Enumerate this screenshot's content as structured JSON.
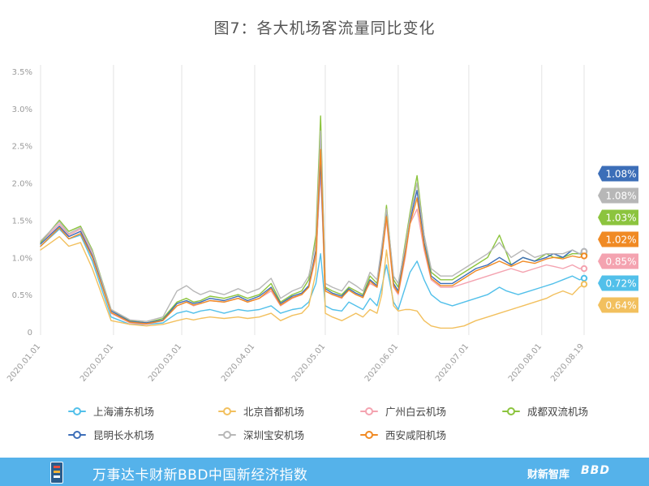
{
  "title": "图7：各大机场客流量同比变化",
  "footer": {
    "index_name": "万事达卡财新BBD中国新经济指数",
    "brand_cn": "财新智库",
    "brand_bbd": "BBD"
  },
  "chart_data": {
    "type": "line",
    "title": "图7：各大机场客流量同比变化",
    "xlabel": "",
    "ylabel": "",
    "y_ticks": [
      "0",
      "0.5%",
      "1.0%",
      "1.5%",
      "2.0%",
      "2.5%",
      "3.0%",
      "3.5%"
    ],
    "ylim": [
      0,
      3.5
    ],
    "x_ticks": [
      "2020.01.01",
      "2020.02.01",
      "2020.03.01",
      "2020.04.01",
      "2020.05.01",
      "2020.06.01",
      "2020.07.01",
      "2020.08.01",
      "2020.08.19"
    ],
    "x_unit": "day_index",
    "x_tick_days": [
      0,
      31,
      60,
      91,
      121,
      152,
      182,
      213,
      231
    ],
    "grid": "vertical",
    "legend_position": "bottom",
    "series": [
      {
        "name": "上海浦东机场",
        "color": "#52c0ea",
        "end_label": "0.72%",
        "x": [
          0,
          8,
          12,
          17,
          22,
          30,
          38,
          45,
          52,
          58,
          62,
          65,
          68,
          72,
          78,
          84,
          88,
          93,
          98,
          102,
          107,
          111,
          114,
          117,
          119,
          121,
          124,
          128,
          131,
          134,
          137,
          140,
          143,
          145,
          147,
          150,
          152,
          155,
          157,
          160,
          163,
          166,
          170,
          175,
          180,
          185,
          190,
          195,
          198,
          203,
          208,
          213,
          218,
          222,
          226,
          229,
          231
        ],
        "values": [
          1.15,
          1.38,
          1.25,
          1.3,
          0.95,
          0.2,
          0.1,
          0.1,
          0.12,
          0.25,
          0.28,
          0.25,
          0.28,
          0.3,
          0.25,
          0.3,
          0.28,
          0.3,
          0.35,
          0.25,
          0.3,
          0.32,
          0.4,
          0.65,
          1.05,
          0.35,
          0.3,
          0.28,
          0.4,
          0.35,
          0.3,
          0.45,
          0.35,
          0.6,
          0.9,
          0.4,
          0.3,
          0.6,
          0.8,
          0.95,
          0.7,
          0.5,
          0.4,
          0.35,
          0.4,
          0.45,
          0.5,
          0.6,
          0.55,
          0.5,
          0.55,
          0.6,
          0.65,
          0.7,
          0.75,
          0.7,
          0.72
        ]
      },
      {
        "name": "北京首都机场",
        "color": "#f2c05e",
        "end_label": "0.64%",
        "x": [
          0,
          8,
          12,
          17,
          22,
          30,
          38,
          45,
          52,
          58,
          62,
          65,
          68,
          72,
          78,
          84,
          88,
          93,
          98,
          102,
          107,
          111,
          114,
          117,
          119,
          121,
          124,
          128,
          131,
          134,
          137,
          140,
          143,
          145,
          147,
          150,
          152,
          155,
          157,
          160,
          163,
          166,
          170,
          175,
          180,
          185,
          190,
          195,
          200,
          205,
          210,
          215,
          218,
          222,
          226,
          229,
          231
        ],
        "values": [
          1.1,
          1.28,
          1.15,
          1.2,
          0.85,
          0.15,
          0.1,
          0.08,
          0.1,
          0.15,
          0.18,
          0.16,
          0.18,
          0.2,
          0.18,
          0.2,
          0.18,
          0.2,
          0.25,
          0.15,
          0.22,
          0.25,
          0.35,
          0.8,
          2.5,
          0.25,
          0.2,
          0.15,
          0.2,
          0.25,
          0.2,
          0.3,
          0.25,
          0.5,
          1.1,
          0.35,
          0.28,
          0.3,
          0.3,
          0.28,
          0.15,
          0.08,
          0.05,
          0.05,
          0.08,
          0.15,
          0.2,
          0.25,
          0.3,
          0.35,
          0.4,
          0.45,
          0.5,
          0.55,
          0.5,
          0.6,
          0.64
        ]
      },
      {
        "name": "广州白云机场",
        "color": "#f4a3b0",
        "end_label": "0.85%",
        "x": [
          0,
          8,
          12,
          17,
          22,
          30,
          38,
          45,
          52,
          58,
          62,
          65,
          68,
          72,
          78,
          84,
          88,
          93,
          98,
          102,
          107,
          111,
          114,
          117,
          119,
          121,
          124,
          128,
          131,
          134,
          137,
          140,
          143,
          145,
          147,
          150,
          152,
          155,
          157,
          160,
          163,
          166,
          170,
          175,
          180,
          185,
          190,
          195,
          200,
          205,
          210,
          215,
          218,
          222,
          226,
          229,
          231
        ],
        "values": [
          1.2,
          1.45,
          1.3,
          1.38,
          1.05,
          0.25,
          0.12,
          0.1,
          0.15,
          0.35,
          0.4,
          0.35,
          0.38,
          0.42,
          0.4,
          0.45,
          0.4,
          0.45,
          0.55,
          0.35,
          0.45,
          0.5,
          0.6,
          1.0,
          2.15,
          0.55,
          0.5,
          0.45,
          0.6,
          0.55,
          0.5,
          0.65,
          0.6,
          1.0,
          1.5,
          0.6,
          0.5,
          1.0,
          1.45,
          1.65,
          1.1,
          0.7,
          0.6,
          0.6,
          0.65,
          0.7,
          0.75,
          0.8,
          0.85,
          0.8,
          0.85,
          0.9,
          0.88,
          0.85,
          0.9,
          0.85,
          0.85
        ]
      },
      {
        "name": "成都双流机场",
        "color": "#8cc43e",
        "end_label": "1.03%",
        "x": [
          0,
          8,
          12,
          17,
          22,
          30,
          38,
          45,
          52,
          58,
          62,
          65,
          68,
          72,
          78,
          84,
          88,
          93,
          98,
          102,
          107,
          111,
          114,
          117,
          119,
          121,
          124,
          128,
          131,
          134,
          137,
          140,
          143,
          145,
          147,
          150,
          152,
          155,
          157,
          160,
          163,
          166,
          170,
          175,
          180,
          185,
          190,
          195,
          200,
          205,
          210,
          215,
          218,
          222,
          226,
          229,
          231
        ],
        "values": [
          1.2,
          1.5,
          1.35,
          1.42,
          1.1,
          0.3,
          0.15,
          0.12,
          0.18,
          0.4,
          0.45,
          0.4,
          0.42,
          0.48,
          0.45,
          0.5,
          0.45,
          0.5,
          0.65,
          0.4,
          0.5,
          0.55,
          0.7,
          1.3,
          2.9,
          0.6,
          0.55,
          0.5,
          0.6,
          0.55,
          0.5,
          0.75,
          0.65,
          1.1,
          1.7,
          0.7,
          0.6,
          1.2,
          1.6,
          2.1,
          1.3,
          0.8,
          0.7,
          0.7,
          0.8,
          0.9,
          1.0,
          1.3,
          0.9,
          1.0,
          0.95,
          1.05,
          1.0,
          1.0,
          1.05,
          1.05,
          1.03
        ]
      },
      {
        "name": "昆明长水机场",
        "color": "#3c6eb8",
        "end_label": "1.08%",
        "x": [
          0,
          8,
          12,
          17,
          22,
          30,
          38,
          45,
          52,
          58,
          62,
          65,
          68,
          72,
          78,
          84,
          88,
          93,
          98,
          102,
          107,
          111,
          114,
          117,
          119,
          121,
          124,
          128,
          131,
          134,
          137,
          140,
          143,
          145,
          147,
          150,
          152,
          155,
          157,
          160,
          163,
          166,
          170,
          175,
          180,
          185,
          190,
          195,
          200,
          205,
          210,
          215,
          218,
          222,
          226,
          229,
          231
        ],
        "values": [
          1.18,
          1.42,
          1.28,
          1.35,
          1.02,
          0.28,
          0.14,
          0.12,
          0.16,
          0.38,
          0.42,
          0.38,
          0.4,
          0.45,
          0.42,
          0.48,
          0.42,
          0.48,
          0.6,
          0.38,
          0.48,
          0.52,
          0.62,
          1.1,
          2.3,
          0.58,
          0.52,
          0.48,
          0.58,
          0.52,
          0.48,
          0.7,
          0.62,
          1.05,
          1.6,
          0.65,
          0.55,
          1.1,
          1.5,
          1.9,
          1.2,
          0.75,
          0.65,
          0.65,
          0.75,
          0.85,
          0.9,
          1.0,
          0.9,
          1.0,
          0.95,
          1.0,
          1.05,
          1.0,
          1.1,
          1.05,
          1.08
        ]
      },
      {
        "name": "深圳宝安机场",
        "color": "#b7b7b7",
        "end_label": "1.08%",
        "x": [
          0,
          8,
          12,
          17,
          22,
          30,
          38,
          45,
          52,
          58,
          62,
          65,
          68,
          72,
          78,
          84,
          88,
          93,
          98,
          102,
          107,
          111,
          114,
          117,
          119,
          121,
          124,
          128,
          131,
          134,
          137,
          140,
          143,
          145,
          147,
          150,
          152,
          155,
          157,
          160,
          163,
          166,
          170,
          175,
          180,
          185,
          190,
          195,
          200,
          205,
          210,
          215,
          218,
          222,
          226,
          229,
          231
        ],
        "values": [
          1.22,
          1.48,
          1.32,
          1.4,
          1.08,
          0.3,
          0.16,
          0.14,
          0.2,
          0.55,
          0.62,
          0.55,
          0.5,
          0.55,
          0.5,
          0.58,
          0.52,
          0.58,
          0.72,
          0.45,
          0.55,
          0.6,
          0.75,
          1.2,
          2.7,
          0.65,
          0.6,
          0.55,
          0.68,
          0.62,
          0.55,
          0.8,
          0.7,
          1.15,
          1.65,
          0.75,
          0.65,
          1.15,
          1.55,
          2.0,
          1.3,
          0.85,
          0.75,
          0.75,
          0.85,
          0.95,
          1.05,
          1.2,
          1.0,
          1.1,
          1.0,
          1.05,
          1.05,
          1.05,
          1.1,
          1.05,
          1.08
        ]
      },
      {
        "name": "西安咸阳机场",
        "color": "#f08a24",
        "end_label": "1.02%",
        "x": [
          0,
          8,
          12,
          17,
          22,
          30,
          38,
          45,
          52,
          58,
          62,
          65,
          68,
          72,
          78,
          84,
          88,
          93,
          98,
          102,
          107,
          111,
          114,
          117,
          119,
          121,
          124,
          128,
          131,
          134,
          137,
          140,
          143,
          145,
          147,
          150,
          152,
          155,
          157,
          160,
          163,
          166,
          170,
          175,
          180,
          185,
          190,
          195,
          200,
          205,
          210,
          215,
          218,
          222,
          226,
          229,
          231
        ],
        "values": [
          1.15,
          1.4,
          1.25,
          1.32,
          1.0,
          0.26,
          0.13,
          0.11,
          0.15,
          0.35,
          0.4,
          0.36,
          0.38,
          0.42,
          0.4,
          0.45,
          0.4,
          0.45,
          0.58,
          0.36,
          0.46,
          0.5,
          0.6,
          1.05,
          2.45,
          0.55,
          0.5,
          0.46,
          0.56,
          0.5,
          0.46,
          0.68,
          0.6,
          1.0,
          1.55,
          0.62,
          0.52,
          1.05,
          1.45,
          1.8,
          1.15,
          0.72,
          0.62,
          0.62,
          0.72,
          0.82,
          0.88,
          0.95,
          0.88,
          0.95,
          0.92,
          0.98,
          1.0,
          0.98,
          1.02,
          1.0,
          1.02
        ]
      }
    ],
    "end_label_order": [
      4,
      5,
      3,
      6,
      2,
      0,
      1
    ]
  }
}
